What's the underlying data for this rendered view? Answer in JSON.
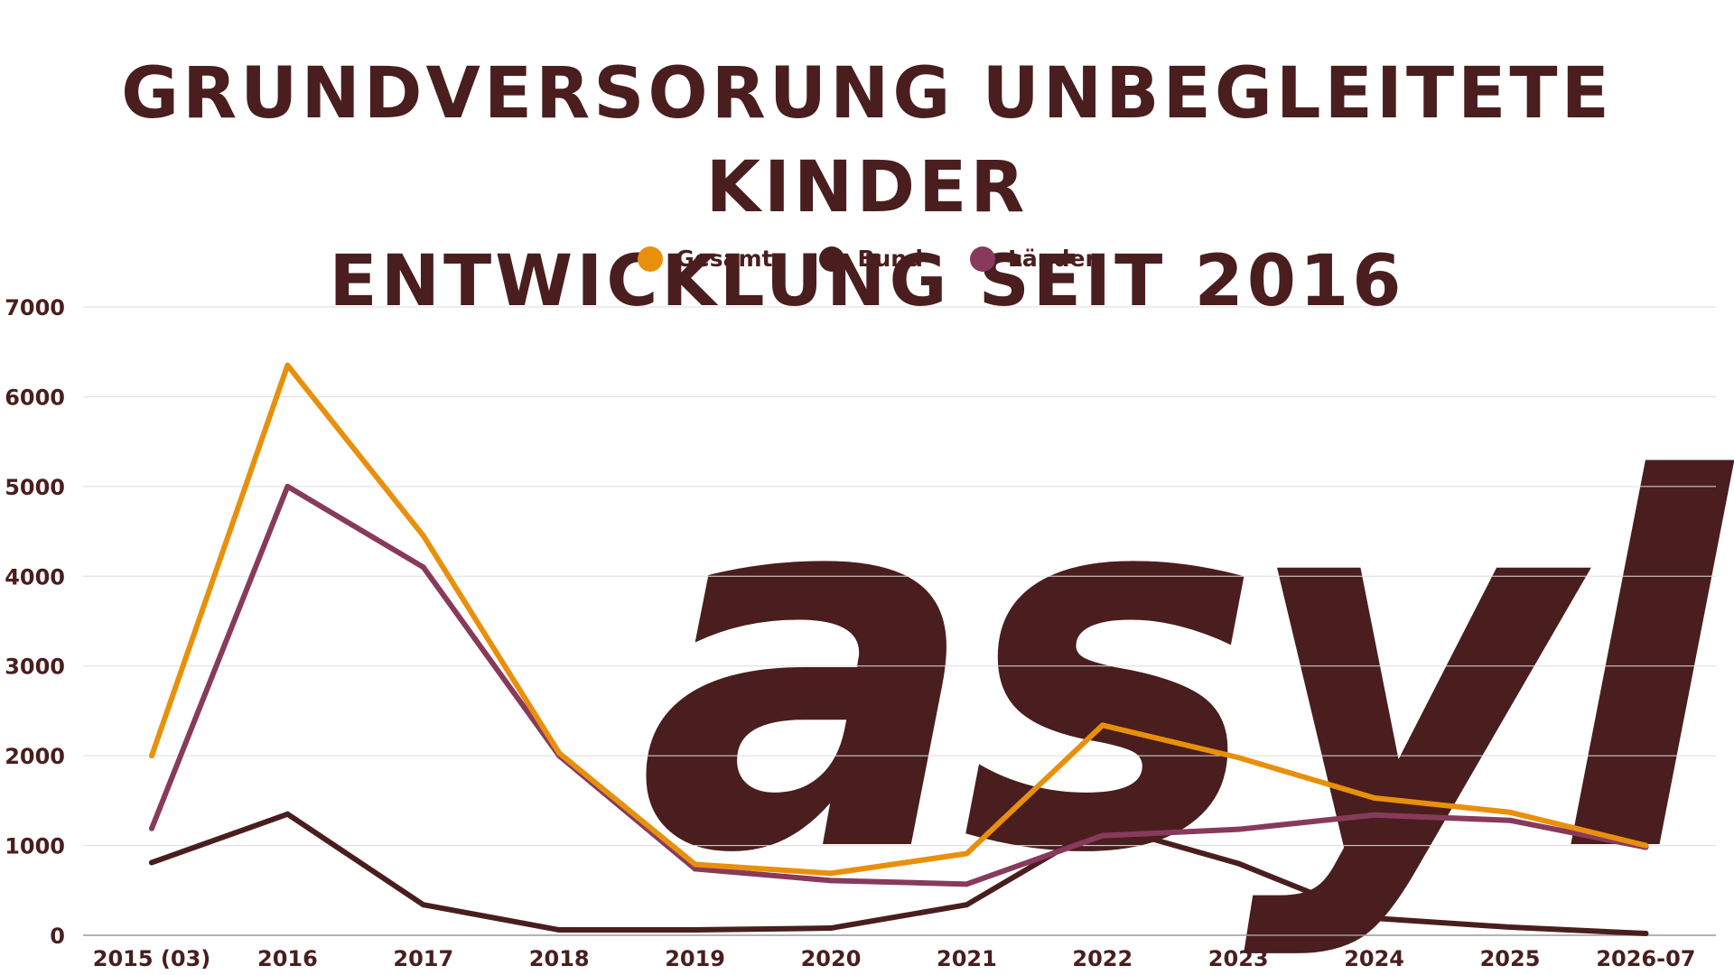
{
  "header": {
    "title_line1": "GRUNDVERSORUNG UNBEGLEITETE KINDER",
    "title_line2": "ENTWICKLUNG SEIT 2016"
  },
  "watermark": {
    "text": "asyl",
    "color": "#fff4e8"
  },
  "chart_data": {
    "type": "line",
    "categories": [
      "2015 (03)",
      "2016",
      "2017",
      "2018",
      "2019",
      "2020",
      "2021",
      "2022",
      "2023",
      "2024",
      "2025",
      "2026-07"
    ],
    "series": [
      {
        "name": "Gesamt",
        "color": "#e8900c",
        "values": [
          2000,
          6350,
          4450,
          2030,
          790,
          690,
          910,
          2340,
          1980,
          1530,
          1370,
          1000
        ]
      },
      {
        "name": "Bund",
        "color": "#4a1e1e",
        "values": [
          810,
          1350,
          340,
          60,
          60,
          80,
          340,
          1230,
          800,
          190,
          90,
          20
        ]
      },
      {
        "name": "Länder",
        "color": "#883a5c",
        "values": [
          1190,
          5000,
          4100,
          2000,
          740,
          610,
          570,
          1110,
          1180,
          1340,
          1280,
          980
        ]
      }
    ],
    "yticks": [
      0,
      1000,
      2000,
      3000,
      4000,
      5000,
      6000,
      7000
    ],
    "ylim": [
      0,
      7000
    ],
    "grid": true,
    "legend_position": "top-center"
  }
}
